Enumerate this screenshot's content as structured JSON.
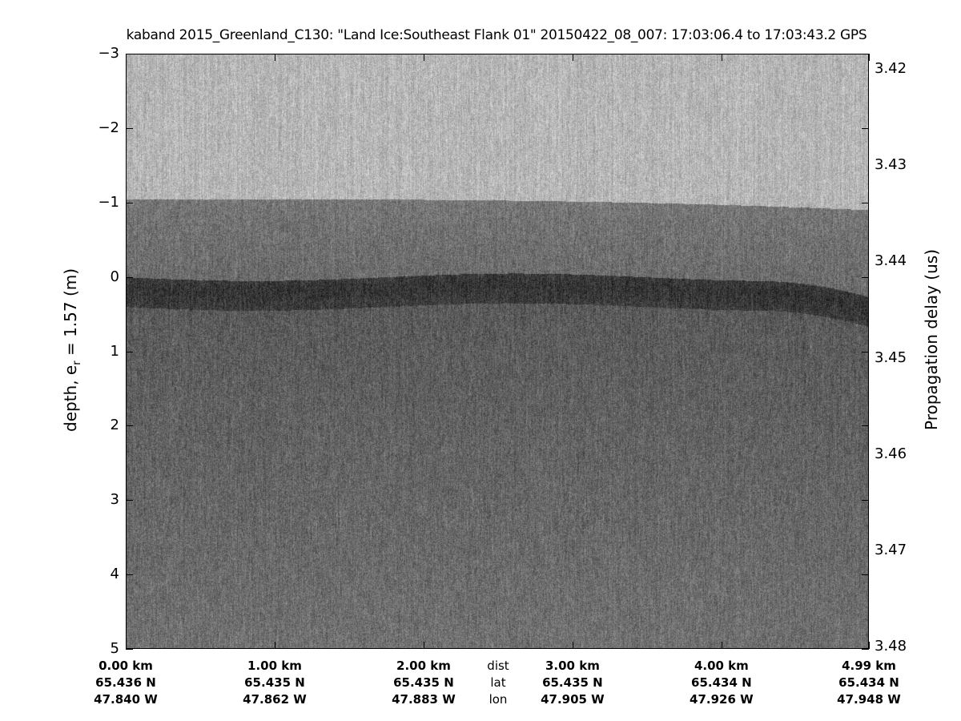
{
  "chart_data": {
    "type": "heatmap",
    "title": "kaband 2015_Greenland_C130: \"Land Ice:Southeast Flank 01\"  20150422_08_007: 17:03:06.4 to 17:03:43.2 GPS",
    "ylabel_left": "depth, e",
    "ylabel_left_sub": "r",
    "ylabel_left_tail": " = 1.57 (m)",
    "ylabel_right": "Propagation delay (us)",
    "ylim_left": [
      -3,
      5
    ],
    "yticks_left": [
      "-3",
      "-2",
      "-1",
      "0",
      "1",
      "2",
      "3",
      "4",
      "5"
    ],
    "ylim_right": [
      3.42,
      3.48
    ],
    "yticks_right": [
      "3.42",
      "3.43",
      "3.44",
      "3.45",
      "3.46",
      "3.47",
      "3.48"
    ],
    "colormap": "gray",
    "x_labels": {
      "row_names": {
        "dist": "dist",
        "lat": "lat",
        "lon": "lon"
      },
      "columns": [
        {
          "dist": "0.00 km",
          "lat": "65.436 N",
          "lon": "47.840 W"
        },
        {
          "dist": "1.00 km",
          "lat": "65.435 N",
          "lon": "47.862 W"
        },
        {
          "dist": "2.00 km",
          "lat": "65.435 N",
          "lon": "47.883 W"
        },
        {
          "dist": "3.00 km",
          "lat": "65.435 N",
          "lon": "47.905 W"
        },
        {
          "dist": "4.00 km",
          "lat": "65.434 N",
          "lon": "47.926 W"
        },
        {
          "dist": "4.99 km",
          "lat": "65.434 N",
          "lon": "47.948 W"
        }
      ]
    }
  }
}
